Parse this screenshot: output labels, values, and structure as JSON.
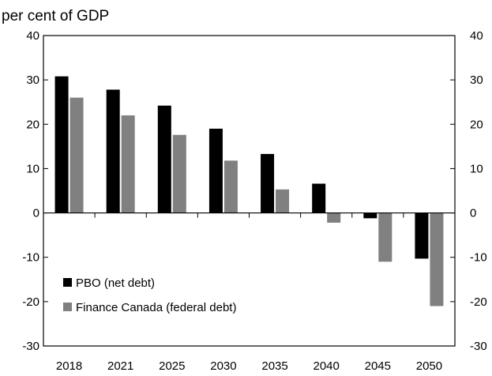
{
  "chart_data": {
    "type": "bar",
    "title": "",
    "unit_label": "per cent of GDP",
    "xlabel": "",
    "ylabel": "",
    "categories": [
      "2018",
      "2021",
      "2025",
      "2030",
      "2035",
      "2040",
      "2045",
      "2050"
    ],
    "series": [
      {
        "name": "PBO (net debt)",
        "color": "#000000",
        "values": [
          30.8,
          27.8,
          24.2,
          19.0,
          13.3,
          6.6,
          -1.2,
          -10.3
        ]
      },
      {
        "name": "Finance Canada (federal debt)",
        "color": "#808080",
        "values": [
          26.0,
          22.0,
          17.6,
          11.8,
          5.3,
          -2.2,
          -11.0,
          -21.0
        ]
      }
    ],
    "ylim": [
      -30,
      40
    ],
    "yticks": [
      40,
      30,
      20,
      10,
      0,
      -10,
      -20,
      -30
    ],
    "ytick_labels": [
      "40",
      "30",
      "20",
      "10",
      "0",
      "-10",
      "-20",
      "-30"
    ],
    "secondary_y_axis": true,
    "grid": false,
    "legend_position": "lower-left"
  }
}
